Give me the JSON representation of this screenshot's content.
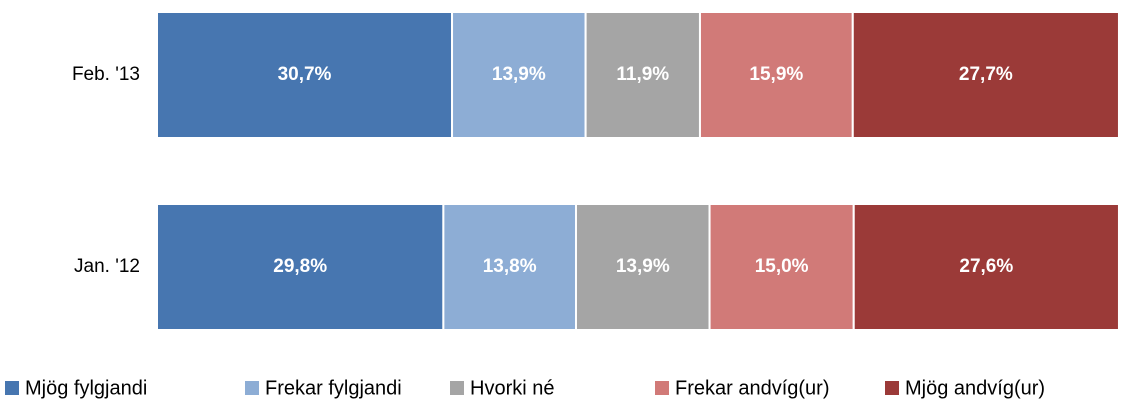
{
  "chart_data": {
    "type": "stacked-bar-horizontal",
    "categories": [
      "Feb. '13",
      "Jan. '12"
    ],
    "xlim": [
      0,
      100
    ],
    "series": [
      {
        "name": "Mjög fylgjandi",
        "color": "#4776b0",
        "values": [
          30.7,
          29.8
        ],
        "value_labels": [
          "30,7%",
          "29,8%"
        ]
      },
      {
        "name": "Frekar fylgjandi",
        "color": "#8dadd5",
        "values": [
          13.9,
          13.8
        ],
        "value_labels": [
          "13,9%",
          "13,8%"
        ]
      },
      {
        "name": "Hvorki né",
        "color": "#a5a5a5",
        "values": [
          11.9,
          13.9
        ],
        "value_labels": [
          "11,9%",
          "13,9%"
        ]
      },
      {
        "name": "Frekar andvíg(ur)",
        "color": "#d17a78",
        "values": [
          15.9,
          15.0
        ],
        "value_labels": [
          "15,9%",
          "15,0%"
        ]
      },
      {
        "name": "Mjög andvíg(ur)",
        "color": "#9b3a38",
        "values": [
          27.7,
          27.6
        ],
        "value_labels": [
          "27,7%",
          "27,6%"
        ]
      }
    ]
  }
}
